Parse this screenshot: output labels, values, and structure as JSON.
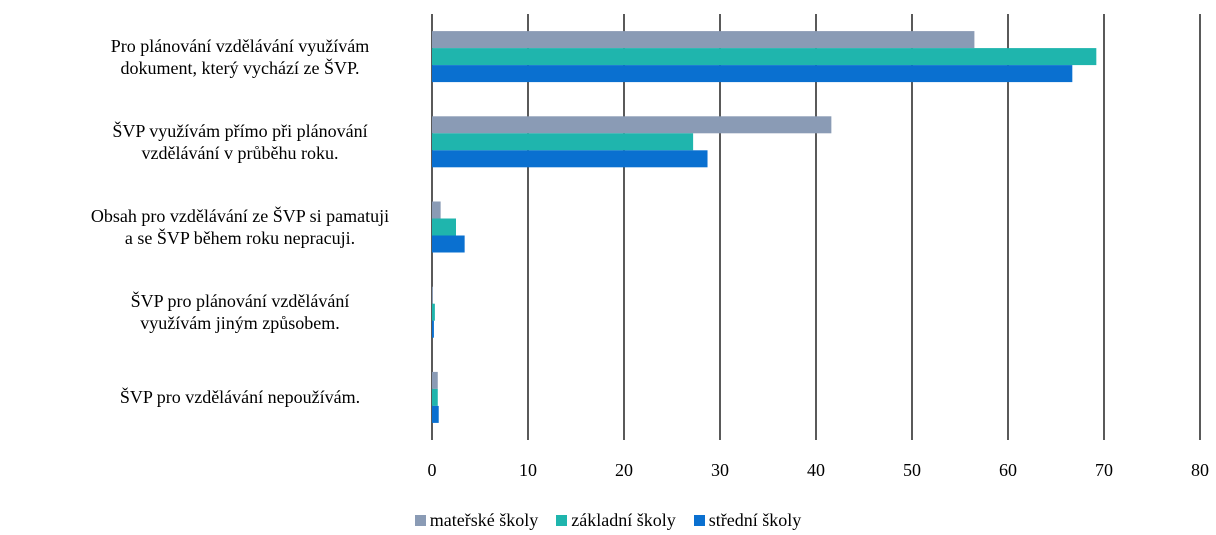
{
  "chart_data": {
    "type": "hbar",
    "categories": [
      "Pro plánování vzdělávání využívám\ndokument, který vychází ze ŠVP.",
      "ŠVP využívám přímo při plánování\nvzdělávání v průběhu roku.",
      "Obsah pro vzdělávání ze ŠVP si pamatuji\na se ŠVP během roku nepracuji.",
      "ŠVP pro plánování vzdělávání\nvyužívám jiným způsobem.",
      "ŠVP pro vzdělávání nepoužívám."
    ],
    "series": [
      {
        "name": "mateřské školy",
        "color": "#8a9bb5",
        "values": [
          56.5,
          41.6,
          0.9,
          0.1,
          0.6
        ]
      },
      {
        "name": "základní školy",
        "color": "#1fb5ad",
        "values": [
          69.2,
          27.2,
          2.5,
          0.3,
          0.6
        ]
      },
      {
        "name": "střední školy",
        "color": "#0a70d0",
        "values": [
          66.7,
          28.7,
          3.4,
          0.2,
          0.7
        ]
      }
    ],
    "xlim": [
      0,
      80
    ],
    "xticks": [
      0,
      10,
      20,
      30,
      40,
      50,
      60,
      70,
      80
    ],
    "grid": true
  }
}
